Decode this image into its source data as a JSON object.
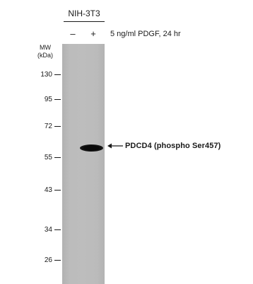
{
  "header": {
    "cell_line": "NIH-3T3",
    "lanes": [
      "–",
      "+"
    ],
    "treatment": "5 ng/ml PDGF, 24 hr"
  },
  "mw": {
    "title_line1": "MW",
    "title_line2": "(kDa)",
    "markers": [
      "130",
      "95",
      "72",
      "55",
      "43",
      "34",
      "26"
    ]
  },
  "band": {
    "label": "PDCD4 (phospho Ser457)"
  }
}
